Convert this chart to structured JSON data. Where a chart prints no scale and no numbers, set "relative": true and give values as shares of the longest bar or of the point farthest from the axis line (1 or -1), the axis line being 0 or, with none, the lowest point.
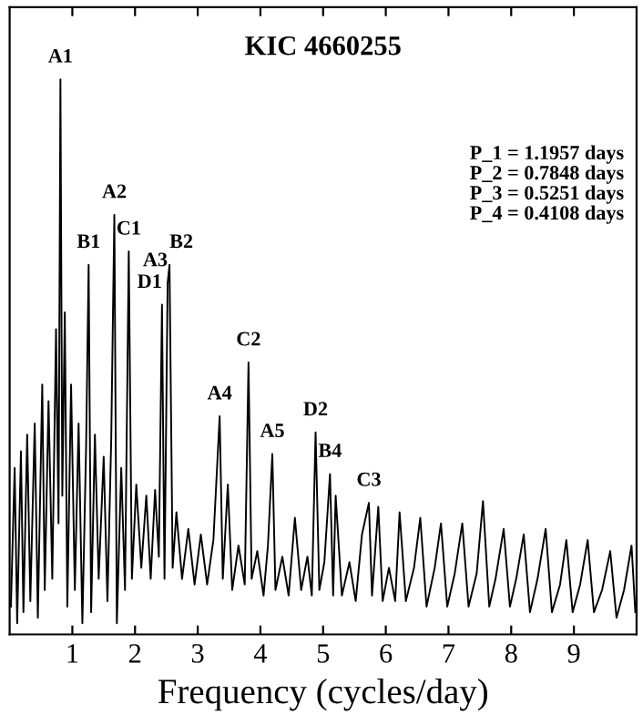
{
  "chart_data": {
    "type": "line",
    "title": "KIC 4660255",
    "xlabel": "Frequency (cycles/day)",
    "relative": true,
    "xlim": [
      0,
      10
    ],
    "xticks": [
      1,
      2,
      3,
      4,
      5,
      6,
      7,
      8,
      9
    ],
    "tick_labels": "x",
    "series": [
      {
        "color": "#000000",
        "x": [
          0.02,
          0.08,
          0.12,
          0.18,
          0.22,
          0.28,
          0.33,
          0.4,
          0.45,
          0.52,
          0.56,
          0.62,
          0.68,
          0.74,
          0.78,
          0.81,
          0.84,
          0.88,
          0.92,
          0.98,
          1.04,
          1.1,
          1.16,
          1.22,
          1.26,
          1.3,
          1.36,
          1.42,
          1.5,
          1.56,
          1.62,
          1.67,
          1.71,
          1.78,
          1.84,
          1.9,
          1.95,
          2.02,
          2.1,
          2.18,
          2.25,
          2.32,
          2.38,
          2.43,
          2.47,
          2.52,
          2.55,
          2.6,
          2.66,
          2.75,
          2.85,
          2.95,
          3.05,
          3.15,
          3.25,
          3.35,
          3.4,
          3.48,
          3.55,
          3.65,
          3.75,
          3.81,
          3.86,
          3.95,
          4.05,
          4.12,
          4.19,
          4.24,
          4.35,
          4.45,
          4.55,
          4.65,
          4.75,
          4.82,
          4.88,
          4.94,
          5.02,
          5.11,
          5.16,
          5.2,
          5.3,
          5.42,
          5.52,
          5.62,
          5.73,
          5.78,
          5.88,
          5.95,
          6.05,
          6.15,
          6.22,
          6.32,
          6.45,
          6.55,
          6.65,
          6.78,
          6.88,
          6.98,
          7.1,
          7.22,
          7.32,
          7.45,
          7.55,
          7.65,
          7.75,
          7.88,
          7.98,
          8.08,
          8.2,
          8.3,
          8.42,
          8.55,
          8.65,
          8.78,
          8.88,
          8.98,
          9.1,
          9.22,
          9.32,
          9.45,
          9.58,
          9.68,
          9.8,
          9.92,
          9.98
        ],
        "values": [
          0.05,
          0.3,
          0.02,
          0.33,
          0.04,
          0.36,
          0.06,
          0.38,
          0.03,
          0.45,
          0.08,
          0.42,
          0.1,
          0.55,
          0.2,
          1.0,
          0.25,
          0.58,
          0.05,
          0.45,
          0.08,
          0.38,
          0.02,
          0.34,
          0.666,
          0.04,
          0.36,
          0.1,
          0.32,
          0.06,
          0.35,
          0.756,
          0.02,
          0.3,
          0.08,
          0.69,
          0.1,
          0.27,
          0.12,
          0.25,
          0.1,
          0.26,
          0.14,
          0.594,
          0.1,
          0.633,
          0.666,
          0.12,
          0.22,
          0.1,
          0.19,
          0.09,
          0.18,
          0.09,
          0.17,
          0.393,
          0.1,
          0.27,
          0.08,
          0.16,
          0.09,
          0.49,
          0.1,
          0.15,
          0.07,
          0.16,
          0.325,
          0.08,
          0.14,
          0.07,
          0.21,
          0.08,
          0.14,
          0.07,
          0.364,
          0.08,
          0.13,
          0.289,
          0.07,
          0.25,
          0.07,
          0.13,
          0.06,
          0.18,
          0.237,
          0.07,
          0.23,
          0.06,
          0.12,
          0.06,
          0.22,
          0.06,
          0.12,
          0.21,
          0.05,
          0.12,
          0.2,
          0.05,
          0.11,
          0.2,
          0.05,
          0.11,
          0.24,
          0.05,
          0.1,
          0.19,
          0.05,
          0.1,
          0.18,
          0.04,
          0.1,
          0.19,
          0.04,
          0.09,
          0.17,
          0.04,
          0.09,
          0.17,
          0.04,
          0.08,
          0.15,
          0.03,
          0.08,
          0.16,
          0.04
        ]
      }
    ],
    "annotations": [
      {
        "text": "A1",
        "x": 0.81,
        "y": 1.0
      },
      {
        "text": "B1",
        "x": 1.26,
        "y": 0.666
      },
      {
        "text": "A2",
        "x": 1.67,
        "y": 0.756
      },
      {
        "text": "C1",
        "x": 1.9,
        "y": 0.69
      },
      {
        "text": "D1",
        "x": 2.43,
        "y": 0.594
      },
      {
        "text": "A3",
        "x": 2.52,
        "y": 0.633
      },
      {
        "text": "B2",
        "x": 2.55,
        "y": 0.666
      },
      {
        "text": "A4",
        "x": 3.35,
        "y": 0.393
      },
      {
        "text": "C2",
        "x": 3.81,
        "y": 0.49
      },
      {
        "text": "A5",
        "x": 4.19,
        "y": 0.325
      },
      {
        "text": "D2",
        "x": 4.88,
        "y": 0.364
      },
      {
        "text": "B4",
        "x": 5.11,
        "y": 0.289
      },
      {
        "text": "C3",
        "x": 5.73,
        "y": 0.237
      },
      "P_1 = 1.1957 days",
      "P_2 = 0.7848 days",
      "P_3 = 0.5251 days",
      "P_4 = 0.4108 days"
    ]
  }
}
